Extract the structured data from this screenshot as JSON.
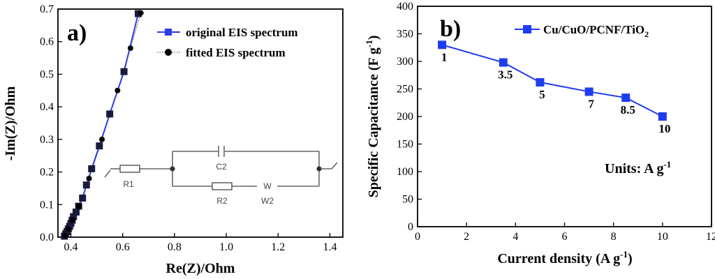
{
  "chart_data": [
    {
      "type": "line",
      "panel_label": "a)",
      "xlabel": "Re(Z)/Ohm",
      "ylabel": "-Im(Z)/Ohm",
      "xlim": [
        0.35,
        1.45
      ],
      "ylim": [
        0.0,
        0.7
      ],
      "xticks": [
        "0.4",
        "0.6",
        "0.8",
        "1.0",
        "1.2",
        "1.4"
      ],
      "yticks": [
        "0.0",
        "0.1",
        "0.2",
        "0.3",
        "0.4",
        "0.5",
        "0.6",
        "0.7"
      ],
      "legend_position": "top-right",
      "series": [
        {
          "name": "original EIS spectrum",
          "color": "#2a3fe0",
          "marker": "square",
          "x": [
            0.375,
            0.38,
            0.385,
            0.39,
            0.395,
            0.4,
            0.405,
            0.41,
            0.42,
            0.43,
            0.445,
            0.46,
            0.48,
            0.51,
            0.55,
            0.605,
            0.66
          ],
          "y": [
            0.003,
            0.01,
            0.017,
            0.025,
            0.033,
            0.042,
            0.052,
            0.063,
            0.077,
            0.095,
            0.12,
            0.16,
            0.21,
            0.28,
            0.378,
            0.508,
            0.686
          ]
        },
        {
          "name": "fitted EIS spectrum",
          "color": "#000000",
          "marker": "circle",
          "x": [
            0.378,
            0.39,
            0.405,
            0.43,
            0.47,
            0.52,
            0.58,
            0.63,
            0.67
          ],
          "y": [
            0.005,
            0.025,
            0.052,
            0.095,
            0.18,
            0.3,
            0.45,
            0.58,
            0.688
          ]
        }
      ],
      "circuit": {
        "labels": [
          "R1",
          "C2",
          "R2",
          "W2"
        ]
      }
    },
    {
      "type": "line",
      "panel_label": "b)",
      "xlabel": "Current density (A g",
      "xlabel_sup": "-1",
      "xlabel_end": ")",
      "ylabel": "Specific Capacitance (F g",
      "ylabel_sup": "-1",
      "ylabel_end": ")",
      "xlim": [
        0,
        12
      ],
      "ylim": [
        0,
        400
      ],
      "xticks": [
        "0",
        "2",
        "4",
        "6",
        "8",
        "10",
        "12"
      ],
      "yticks": [
        "0",
        "50",
        "100",
        "150",
        "200",
        "250",
        "300",
        "350",
        "400"
      ],
      "legend_position": "top-right",
      "annotation": "Units: A g",
      "annotation_sup": "-1",
      "series": [
        {
          "name": "Cu/CuO/PCNF/TiO",
          "name_sub": "2",
          "color": "#1f3cf0",
          "marker": "square",
          "x": [
            1,
            3.5,
            5,
            7,
            8.5,
            10
          ],
          "y": [
            330,
            298,
            262,
            245,
            234,
            200
          ],
          "point_labels": [
            "1",
            "3.5",
            "5",
            "7",
            "8.5",
            "10"
          ]
        }
      ]
    }
  ]
}
